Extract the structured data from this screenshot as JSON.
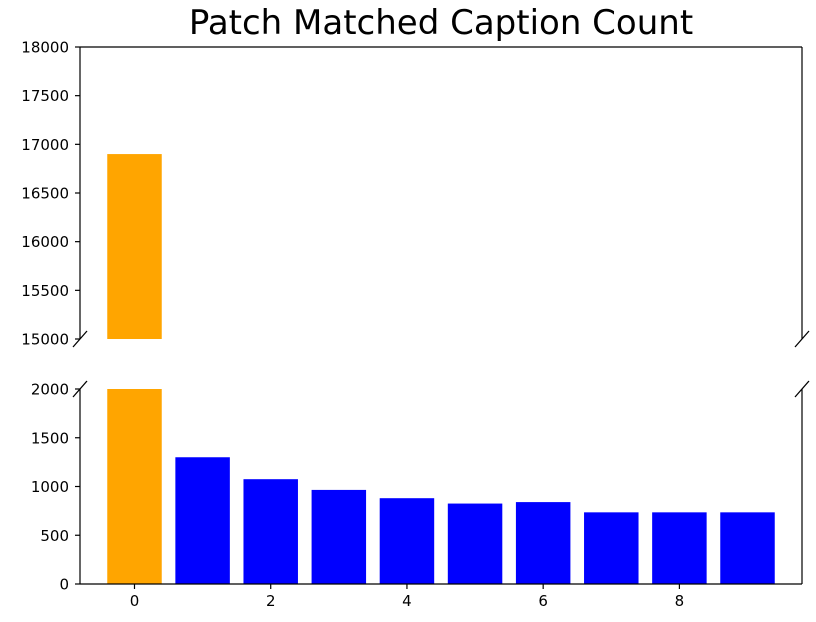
{
  "chart_data": {
    "type": "bar",
    "title": "Patch Matched Caption Count",
    "xlabel": "",
    "ylabel": "",
    "broken_y_axis": true,
    "x": [
      0,
      1,
      2,
      3,
      4,
      5,
      6,
      7,
      8,
      9
    ],
    "values": [
      16900,
      1300,
      1075,
      965,
      880,
      825,
      840,
      735,
      735,
      735
    ],
    "bar_colors": [
      "#ffa500",
      "#0000ff",
      "#0000ff",
      "#0000ff",
      "#0000ff",
      "#0000ff",
      "#0000ff",
      "#0000ff",
      "#0000ff",
      "#0000ff"
    ],
    "xlim": [
      -0.8,
      9.8
    ],
    "x_ticks": [
      "0",
      "2",
      "4",
      "6",
      "8"
    ],
    "upper_panel": {
      "ylim": [
        15000,
        18000
      ],
      "y_ticks": [
        "15000",
        "15500",
        "16000",
        "16500",
        "17000",
        "17500",
        "18000"
      ]
    },
    "lower_panel": {
      "ylim": [
        0,
        2000
      ],
      "y_ticks": [
        "0",
        "500",
        "1000",
        "1500",
        "2000"
      ]
    },
    "grid": false,
    "legend": "none"
  }
}
